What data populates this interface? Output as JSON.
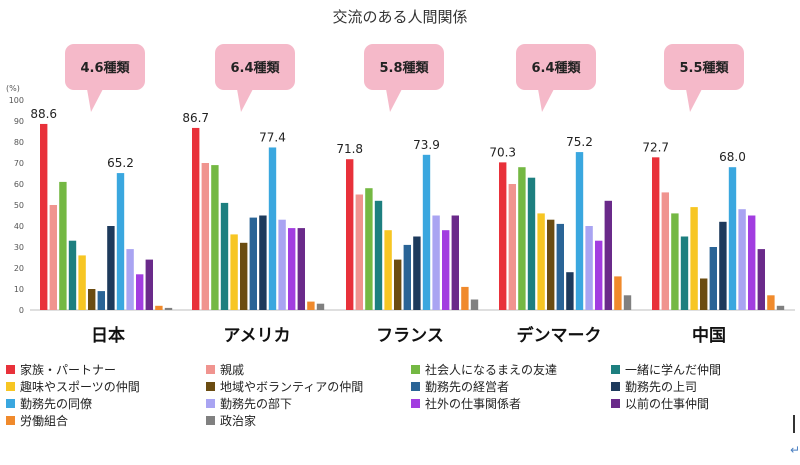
{
  "chart_data": {
    "type": "bar",
    "title": "交流のある人間関係",
    "ylabel": "(%)",
    "ylim": [
      0,
      100
    ],
    "yticks": [
      0,
      10,
      20,
      30,
      40,
      50,
      60,
      70,
      80,
      90,
      100
    ],
    "categories": [
      "日本",
      "アメリカ",
      "フランス",
      "デンマーク",
      "中国"
    ],
    "callouts": [
      "4.6種類",
      "6.4種類",
      "5.8種類",
      "6.4種類",
      "5.5種類"
    ],
    "series": [
      {
        "name": "家族・パートナー",
        "color": "#e8313a",
        "values": [
          88.6,
          86.7,
          71.8,
          70.3,
          72.7
        ],
        "labeled": true
      },
      {
        "name": "親戚",
        "color": "#f0948f",
        "values": [
          50,
          70,
          55,
          60,
          56
        ]
      },
      {
        "name": "社会人になるまえの友達",
        "color": "#74b843",
        "values": [
          61,
          69,
          58,
          68,
          46
        ]
      },
      {
        "name": "一緒に学んだ仲間",
        "color": "#1d7f7f",
        "values": [
          33,
          51,
          52,
          63,
          35
        ]
      },
      {
        "name": "趣味やスポーツの仲間",
        "color": "#f7c623",
        "values": [
          26,
          36,
          38,
          46,
          49
        ]
      },
      {
        "name": "地域やボランティアの仲間",
        "color": "#6b4c11",
        "values": [
          10,
          32,
          24,
          43,
          15
        ]
      },
      {
        "name": "勤務先の経営者",
        "color": "#2a6496",
        "values": [
          9,
          44,
          31,
          41,
          30
        ]
      },
      {
        "name": "勤務先の上司",
        "color": "#1d3a5c",
        "values": [
          40,
          45,
          35,
          18,
          42
        ]
      },
      {
        "name": "勤務先の同僚",
        "color": "#3aa7df",
        "values": [
          65.2,
          77.4,
          73.9,
          75.2,
          68.0
        ],
        "labeled": true
      },
      {
        "name": "勤務先の部下",
        "color": "#a9a4f2",
        "values": [
          29,
          43,
          45,
          40,
          48
        ]
      },
      {
        "name": "社外の仕事関係者",
        "color": "#a23de0",
        "values": [
          17,
          39,
          38,
          33,
          45
        ]
      },
      {
        "name": "以前の仕事仲間",
        "color": "#6a2a8a",
        "values": [
          24,
          39,
          45,
          52,
          29
        ]
      },
      {
        "name": "労働組合",
        "color": "#f08a2c",
        "values": [
          2,
          4,
          11,
          16,
          7
        ]
      },
      {
        "name": "政治家",
        "color": "#808080",
        "values": [
          1,
          3,
          5,
          7,
          2
        ]
      }
    ]
  },
  "legend_label_map": "chart_data.series",
  "colors": {
    "callout_fill": "#f5b9c9",
    "axis": "#bfbfbf"
  }
}
